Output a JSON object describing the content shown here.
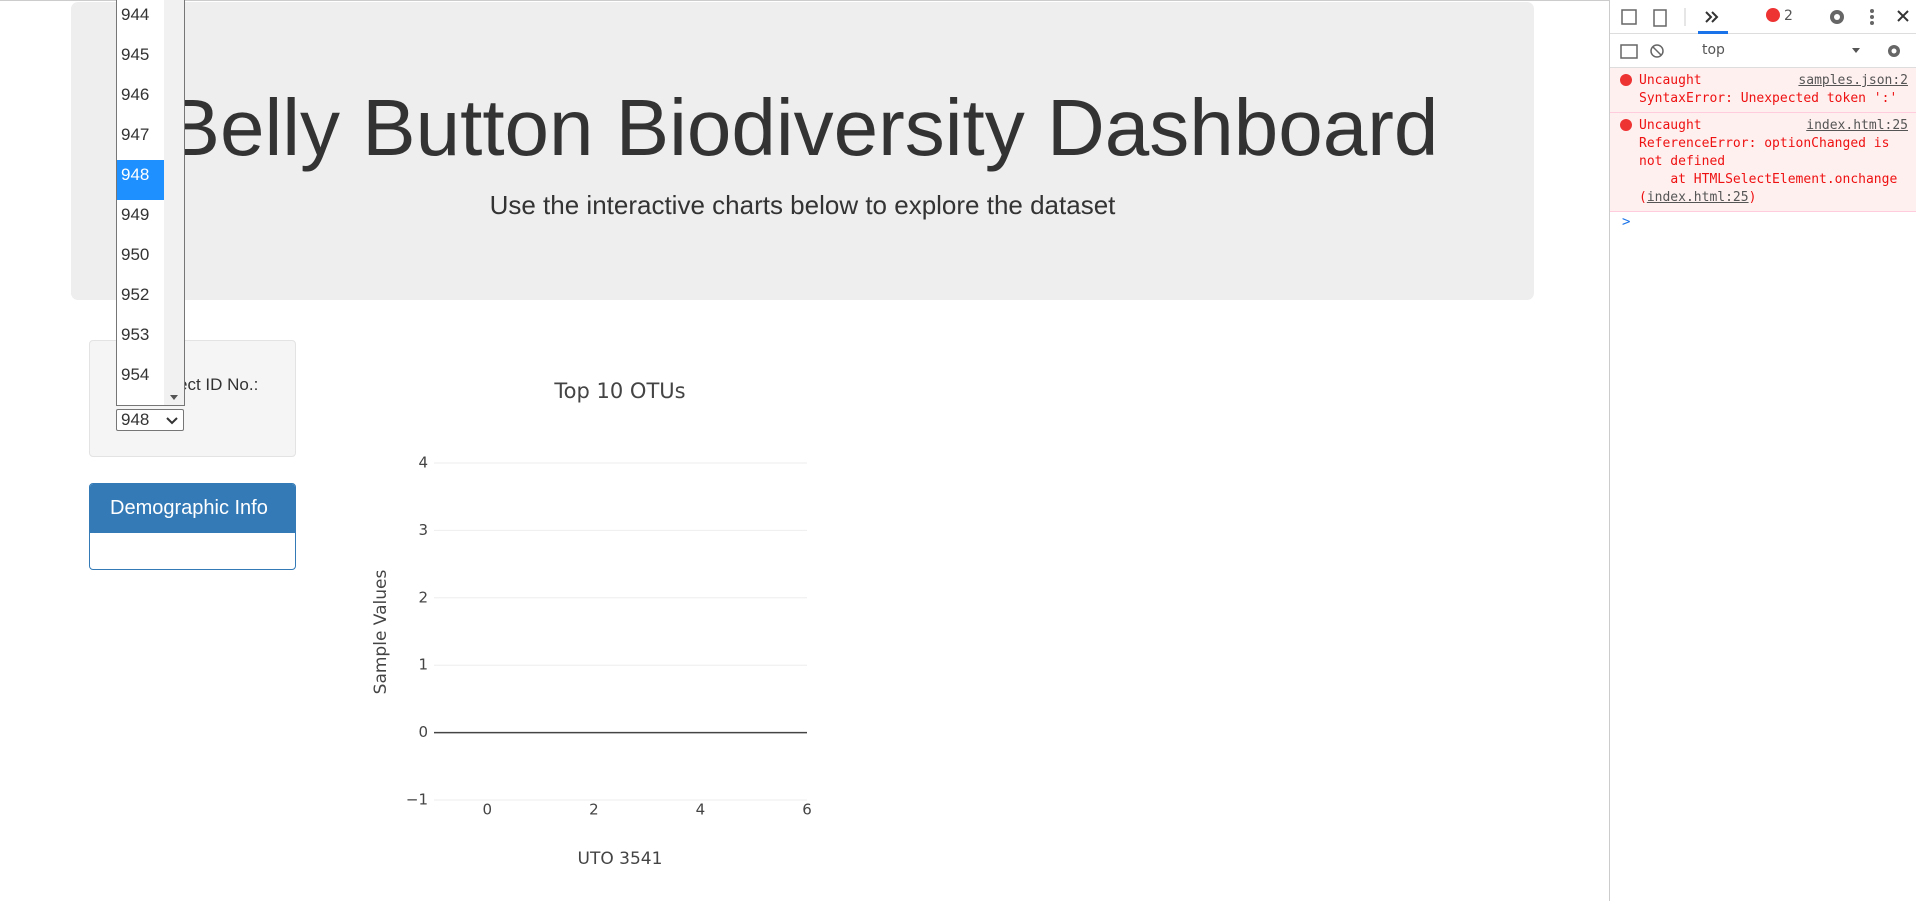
{
  "header": {
    "title": "Belly Button Biodiversity Dashboard",
    "subtitle": "Use the interactive charts below to explore the dataset"
  },
  "selector": {
    "label": "ect ID No.:",
    "value": "948",
    "options": [
      "944",
      "945",
      "946",
      "947",
      "948",
      "949",
      "950",
      "952",
      "953",
      "954"
    ],
    "highlighted_index": 4
  },
  "demographic": {
    "title": "Demographic Info"
  },
  "chart": {
    "type": "bar",
    "title": "Top 10 OTUs",
    "x_label": "UTO 3541",
    "y_label": "Sample Values",
    "xlim": [
      -1,
      6
    ],
    "xticks": [
      0,
      2,
      4,
      6
    ],
    "ylim": [
      -1,
      4
    ],
    "yticks": [
      {
        "value": -1,
        "label": "−1"
      },
      0,
      1,
      2,
      3,
      4
    ],
    "grid": true
  },
  "devtools": {
    "error_count": "2",
    "context": "top",
    "errors": [
      {
        "source": "samples.json:2",
        "text": "Uncaught SyntaxError: Unexpected token ':'",
        "link": null,
        "end": null
      },
      {
        "source": "index.html:25",
        "text": "Uncaught ReferenceError: optionChanged is not defined\n    at HTMLSelectElement.onchange (",
        "link": "index.html:25",
        "end": ")"
      }
    ]
  }
}
